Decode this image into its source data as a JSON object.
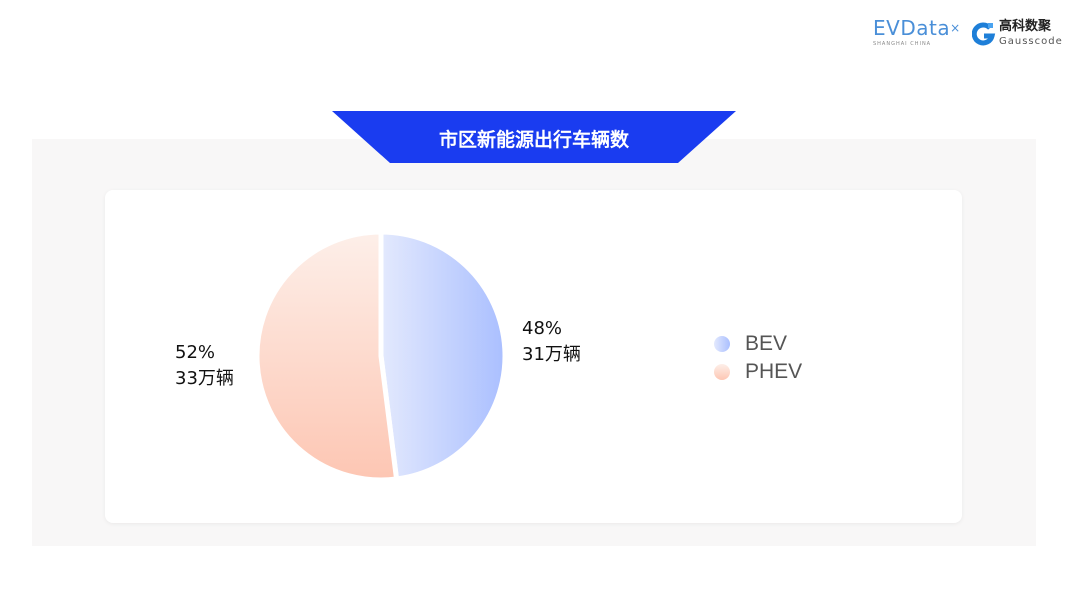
{
  "header": {
    "logo_evdata": "EVData",
    "logo_evdata_sub": "SHANGHAI CHINA",
    "logo_gauss_cn": "高科数聚",
    "logo_gauss_en": "Gausscode"
  },
  "colors": {
    "banner": "#1a3cf0",
    "bev": "#aabfff",
    "phev": "#fdc6b3"
  },
  "chart_data": {
    "type": "pie",
    "title": "市区新能源出行车辆数",
    "slices": [
      {
        "name": "BEV",
        "percent": 48,
        "value_label": "31万辆",
        "percent_label": "48%"
      },
      {
        "name": "PHEV",
        "percent": 52,
        "value_label": "33万辆",
        "percent_label": "52%"
      }
    ],
    "legend_position": "right"
  }
}
